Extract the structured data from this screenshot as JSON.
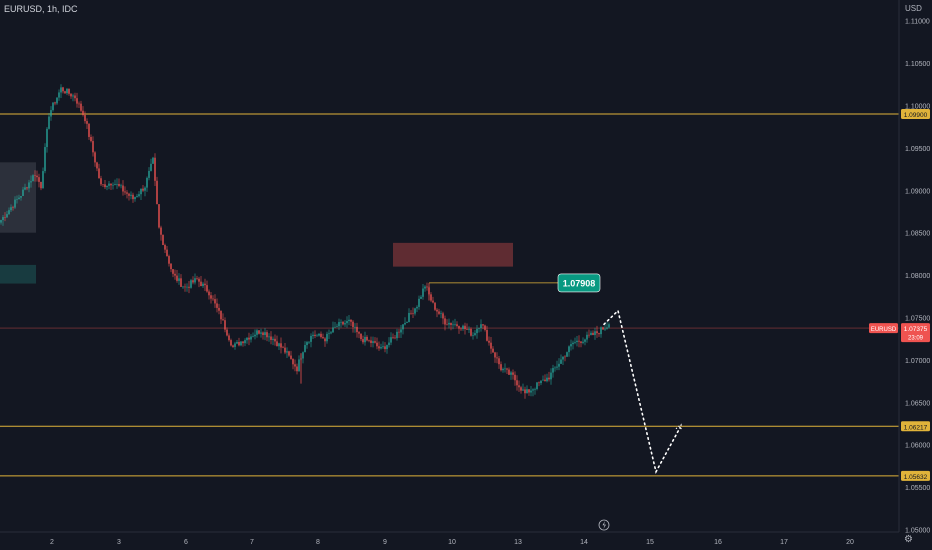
{
  "title": "EURUSD, 1h, IDC",
  "currency": "USD",
  "icons": {
    "settings": "gear-icon",
    "flash": "lightning-icon"
  },
  "colors": {
    "background": "#131722",
    "up": "#26a69a",
    "down": "#ef5350",
    "level": "#e0b33a",
    "axis_text": "#b2b5be",
    "projection": "#ffffff"
  },
  "chart_data": {
    "type": "candlestick",
    "xaxis": {
      "ticks": [
        "2",
        "3",
        "6",
        "7",
        "8",
        "9",
        "10",
        "13",
        "14",
        "15",
        "16",
        "17",
        "20"
      ]
    },
    "yaxis": {
      "ylim": [
        1.0497,
        1.1115
      ],
      "ticks": [
        "1.11000",
        "1.10500",
        "1.10000",
        "1.09500",
        "1.09000",
        "1.08500",
        "1.08000",
        "1.07500",
        "1.07000",
        "1.06500",
        "1.06000",
        "1.05500",
        "1.05000"
      ]
    },
    "horizontal_levels": [
      {
        "label": "1.09900",
        "value": 1.099
      },
      {
        "label": "1.06217",
        "value": 1.06217
      },
      {
        "label": "1.05632",
        "value": 1.05632
      }
    ],
    "current_price": {
      "symbol": "EURUSD",
      "label": "1.07375",
      "value": 1.07375,
      "countdown": "23:09"
    },
    "callout": {
      "label": "1.07908",
      "value": 1.07908
    },
    "zones": [
      {
        "kind": "supply",
        "y_top": 1.0838,
        "y_bottom": 1.081
      },
      {
        "kind": "grey",
        "y_top": 1.0933,
        "y_bottom": 1.085
      },
      {
        "kind": "demand",
        "y_top": 1.0812,
        "y_bottom": 1.079
      }
    ],
    "keypoints": [
      {
        "t": 0,
        "p": 1.0865
      },
      {
        "t": 10,
        "p": 1.0895
      },
      {
        "t": 17,
        "p": 1.092
      },
      {
        "t": 20,
        "p": 1.0905
      },
      {
        "t": 24,
        "p": 1.099
      },
      {
        "t": 30,
        "p": 1.102
      },
      {
        "t": 37,
        "p": 1.101
      },
      {
        "t": 42,
        "p": 1.0985
      },
      {
        "t": 46,
        "p": 1.0945
      },
      {
        "t": 50,
        "p": 1.0905
      },
      {
        "t": 56,
        "p": 1.091
      },
      {
        "t": 66,
        "p": 1.089
      },
      {
        "t": 72,
        "p": 1.0905
      },
      {
        "t": 76,
        "p": 1.0935
      },
      {
        "t": 79,
        "p": 1.0855
      },
      {
        "t": 86,
        "p": 1.08
      },
      {
        "t": 92,
        "p": 1.0785
      },
      {
        "t": 98,
        "p": 1.0795
      },
      {
        "t": 104,
        "p": 1.078
      },
      {
        "t": 110,
        "p": 1.075
      },
      {
        "t": 116,
        "p": 1.0715
      },
      {
        "t": 122,
        "p": 1.0725
      },
      {
        "t": 130,
        "p": 1.0735
      },
      {
        "t": 136,
        "p": 1.0725
      },
      {
        "t": 142,
        "p": 1.071
      },
      {
        "t": 148,
        "p": 1.069
      },
      {
        "t": 152,
        "p": 1.072
      },
      {
        "t": 156,
        "p": 1.073
      },
      {
        "t": 162,
        "p": 1.0725
      },
      {
        "t": 168,
        "p": 1.074
      },
      {
        "t": 174,
        "p": 1.0745
      },
      {
        "t": 180,
        "p": 1.0725
      },
      {
        "t": 186,
        "p": 1.072
      },
      {
        "t": 190,
        "p": 1.0712
      },
      {
        "t": 196,
        "p": 1.0725
      },
      {
        "t": 202,
        "p": 1.0745
      },
      {
        "t": 208,
        "p": 1.0765
      },
      {
        "t": 212,
        "p": 1.0788
      },
      {
        "t": 216,
        "p": 1.0765
      },
      {
        "t": 222,
        "p": 1.0745
      },
      {
        "t": 230,
        "p": 1.074
      },
      {
        "t": 236,
        "p": 1.073
      },
      {
        "t": 240,
        "p": 1.0745
      },
      {
        "t": 244,
        "p": 1.072
      },
      {
        "t": 250,
        "p": 1.069
      },
      {
        "t": 256,
        "p": 1.068
      },
      {
        "t": 262,
        "p": 1.066
      },
      {
        "t": 268,
        "p": 1.067
      },
      {
        "t": 274,
        "p": 1.068
      },
      {
        "t": 280,
        "p": 1.07
      },
      {
        "t": 286,
        "p": 1.072
      },
      {
        "t": 292,
        "p": 1.0725
      },
      {
        "t": 298,
        "p": 1.0732
      },
      {
        "t": 304,
        "p": 1.0742
      }
    ],
    "projection": [
      {
        "p": 1.0758
      },
      {
        "p": 1.0568
      },
      {
        "p": 1.062
      }
    ]
  }
}
